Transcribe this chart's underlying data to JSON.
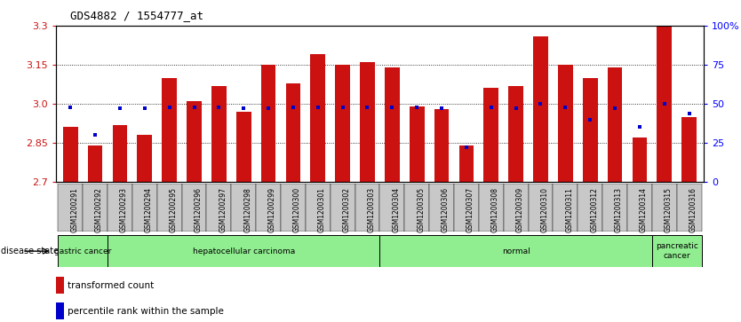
{
  "title": "GDS4882 / 1554777_at",
  "samples": [
    "GSM1200291",
    "GSM1200292",
    "GSM1200293",
    "GSM1200294",
    "GSM1200295",
    "GSM1200296",
    "GSM1200297",
    "GSM1200298",
    "GSM1200299",
    "GSM1200300",
    "GSM1200301",
    "GSM1200302",
    "GSM1200303",
    "GSM1200304",
    "GSM1200305",
    "GSM1200306",
    "GSM1200307",
    "GSM1200308",
    "GSM1200309",
    "GSM1200310",
    "GSM1200311",
    "GSM1200312",
    "GSM1200313",
    "GSM1200314",
    "GSM1200315",
    "GSM1200316"
  ],
  "bar_values": [
    2.91,
    2.84,
    2.92,
    2.88,
    3.1,
    3.01,
    3.07,
    2.97,
    3.15,
    3.08,
    3.19,
    3.15,
    3.16,
    3.14,
    2.99,
    2.98,
    2.84,
    3.06,
    3.07,
    3.26,
    3.15,
    3.1,
    3.14,
    2.87,
    3.3,
    2.95
  ],
  "percentile_values": [
    48,
    30,
    47,
    47,
    48,
    48,
    48,
    47,
    47,
    48,
    48,
    48,
    48,
    48,
    48,
    47,
    22,
    48,
    47,
    50,
    48,
    40,
    47,
    35,
    50,
    44
  ],
  "ymin": 2.7,
  "ymax": 3.3,
  "yticks": [
    2.7,
    2.85,
    3.0,
    3.15,
    3.3
  ],
  "right_yticks": [
    0,
    25,
    50,
    75,
    100
  ],
  "bar_color": "#CC1111",
  "dot_color": "#0000CC",
  "group_defs": [
    {
      "label": "gastric cancer",
      "start": 0,
      "end": 1
    },
    {
      "label": "hepatocellular carcinoma",
      "start": 2,
      "end": 12
    },
    {
      "label": "normal",
      "start": 13,
      "end": 23
    },
    {
      "label": "pancreatic\ncancer",
      "start": 24,
      "end": 25
    }
  ],
  "group_color": "#90EE90",
  "group_border_color": "#000000",
  "tick_bg_color": "#C8C8C8",
  "bg_color": "#FFFFFF",
  "legend_labels": [
    "transformed count",
    "percentile rank within the sample"
  ]
}
